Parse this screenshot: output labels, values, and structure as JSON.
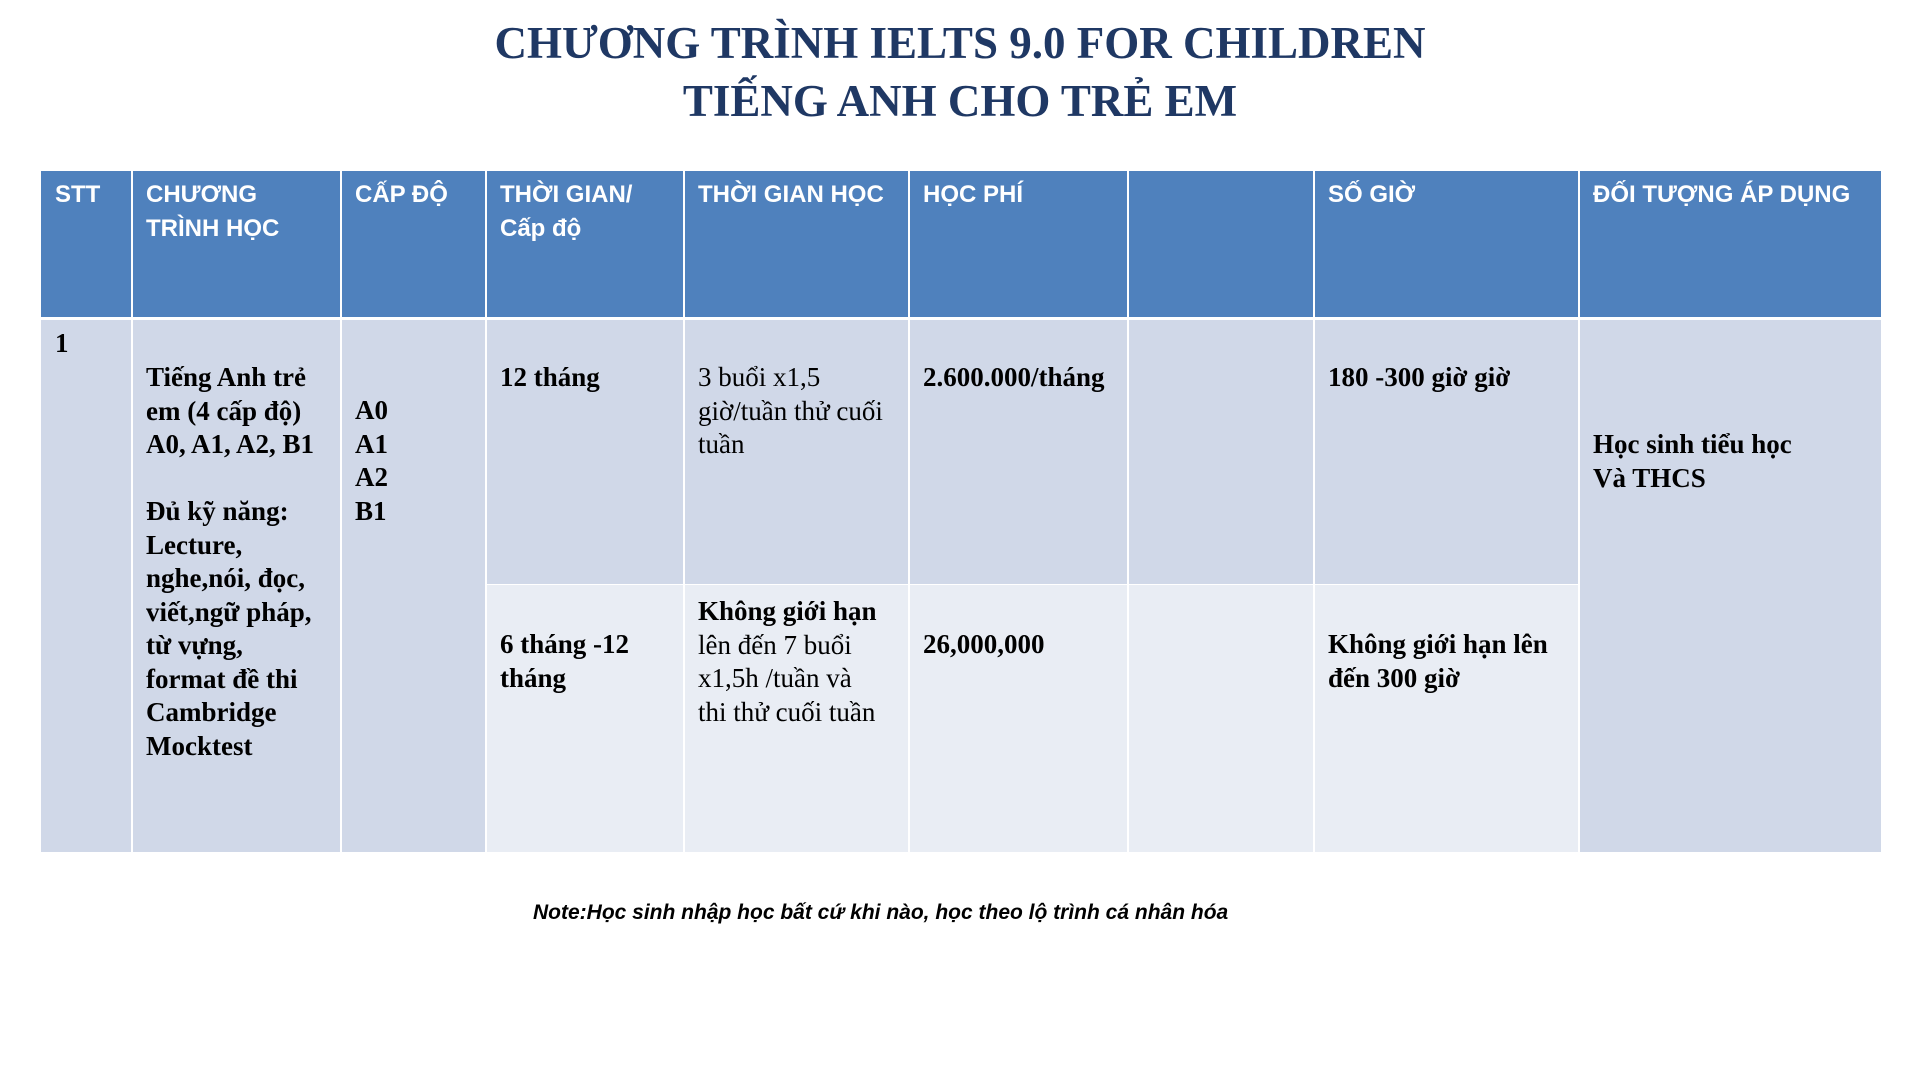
{
  "header": {
    "title": [
      "CHƯƠNG TRÌNH IELTS 9.0 FOR CHILDREN",
      "TIẾNG ANH CHO TRẺ EM"
    ]
  },
  "table": {
    "headers": [
      "STT",
      "CHƯƠNG\nTRÌNH HỌC",
      "CẤP ĐỘ",
      "THỜI GIAN/\nCấp độ",
      "THỜI GIAN HỌC",
      "HỌC PHÍ",
      "SỐ GIỜ",
      "ĐỐI TƯỢNG ÁP DỤNG"
    ],
    "rows": [
      [
        "1",
        "Tiếng Anh trẻ\nem (4 cấp độ)\nA0, A1, A2, B1\n\nĐủ kỹ năng:\nLecture,\nnghe,nói, đọc,\nviết,ngữ pháp,\ntừ vựng,\nformat đề thi\nCambridge\nMocktest",
        "A0\nA1\nA2\nB1",
        "12 tháng",
        "3 buổi x1,5\ngiờ/tuần thử cuối\ntuần",
        "2.600.000/tháng",
        "180 -300 giờ giờ",
        "Học sinh tiểu học\nVà THCS"
      ],
      [
        "6 tháng -12\ntháng",
        {
          "bold": "Không giới hạn",
          "text": "lên đến 7 buổi\nx1,5h /tuần và\nthi thử cuối tuần"
        },
        "26,000,000",
        "Không giới hạn lên\nđến 300 giờ"
      ]
    ]
  },
  "note": "Note:Học sinh nhập học bất cứ khi nào, học theo lộ trình cá nhân hóa"
}
